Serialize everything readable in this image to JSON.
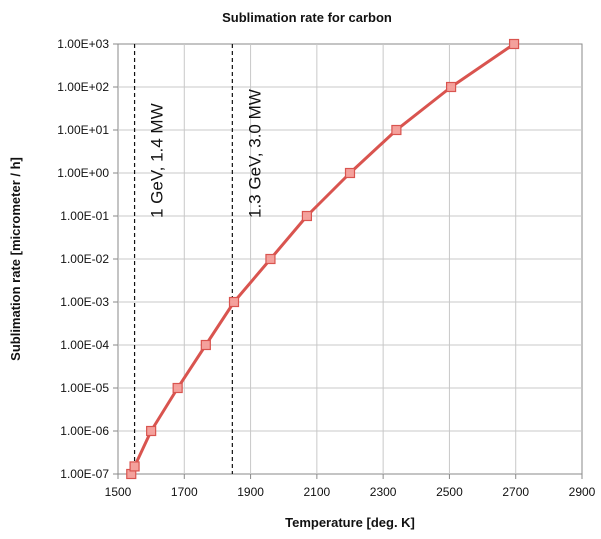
{
  "chart_data": {
    "type": "line",
    "title": "Sublimation rate for carbon",
    "xlabel": "Temperature [deg. K]",
    "ylabel": "Sublimation rate [micrometer / h]",
    "xlim": [
      1500,
      2900
    ],
    "ylim": [
      1e-07,
      1000
    ],
    "yscale": "log",
    "grid": true,
    "x_ticks": [
      1500,
      1700,
      1900,
      2100,
      2300,
      2500,
      2700,
      2900
    ],
    "x_tick_labels": [
      "1500",
      "1700",
      "1900",
      "2100",
      "2300",
      "2500",
      "2700",
      "2900"
    ],
    "y_ticks": [
      1e-07,
      1e-06,
      1e-05,
      0.0001,
      0.001,
      0.01,
      0.1,
      1,
      10,
      100,
      1000
    ],
    "y_tick_labels": [
      "1.00E-07",
      "1.00E-06",
      "1.00E-05",
      "1.00E-04",
      "1.00E-03",
      "1.00E-02",
      "1.00E-01",
      "1.00E+00",
      "1.00E+01",
      "1.00E+02",
      "1.00E+03"
    ],
    "series": [
      {
        "color": "#d9544f",
        "marker": "square",
        "x": [
          1540,
          1550,
          1600,
          1680,
          1765,
          1850,
          1960,
          2070,
          2200,
          2340,
          2505,
          2695
        ],
        "y": [
          1e-07,
          1.5e-07,
          1e-06,
          1e-05,
          0.0001,
          0.001,
          0.01,
          0.1,
          1,
          10,
          100,
          1000
        ]
      }
    ],
    "vlines": [
      {
        "x": 1550,
        "label": "1 GeV, 1.4 MW",
        "style": "dashed"
      },
      {
        "x": 1845,
        "label": "1.3 GeV, 3.0 MW",
        "style": "dashed"
      }
    ]
  }
}
